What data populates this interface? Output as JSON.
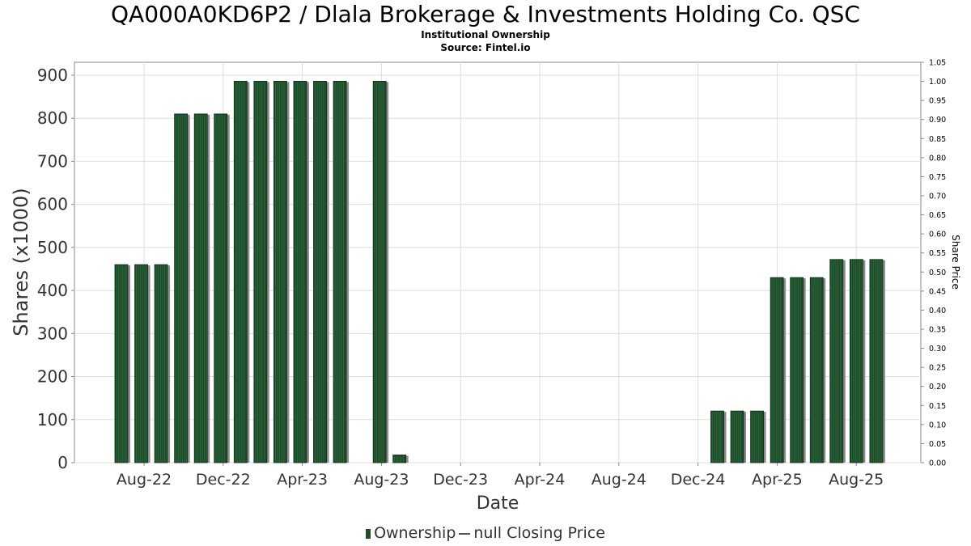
{
  "header": {
    "title": "QA000A0KD6P2 / Dlala Brokerage & Investments Holding Co. QSC",
    "subtitle1": "Institutional Ownership",
    "subtitle2": "Source: Fintel.io"
  },
  "legend": {
    "ownership": "Ownership",
    "price": "null Closing Price"
  },
  "colors": {
    "bar": "#1e4d2b",
    "bar_shadow": "#8c8c8c",
    "grid": "#dddddd"
  },
  "chart_data": {
    "type": "bar",
    "xlabel": "Date",
    "ylabel": "Shares (x1000)",
    "y2label": "Share Price",
    "ylim": [
      0,
      930
    ],
    "y2lim": [
      0,
      1.05
    ],
    "yticks": [
      0,
      100,
      200,
      300,
      400,
      500,
      600,
      700,
      800,
      900
    ],
    "y2ticks": [
      "0.00",
      "0.05",
      "0.10",
      "0.15",
      "0.20",
      "0.25",
      "0.30",
      "0.35",
      "0.40",
      "0.45",
      "0.50",
      "0.55",
      "0.60",
      "0.65",
      "0.70",
      "0.75",
      "0.80",
      "0.85",
      "0.90",
      "0.95",
      "1.00",
      "1.05"
    ],
    "xticks": [
      "Aug-22",
      "Dec-22",
      "Apr-23",
      "Aug-23",
      "Dec-23",
      "Apr-24",
      "Aug-24",
      "Dec-24",
      "Apr-25",
      "Aug-25"
    ],
    "grid": true,
    "bars": [
      {
        "slot": 0,
        "value": 460
      },
      {
        "slot": 1,
        "value": 460
      },
      {
        "slot": 2,
        "value": 460
      },
      {
        "slot": 3,
        "value": 810
      },
      {
        "slot": 4,
        "value": 810
      },
      {
        "slot": 5,
        "value": 810
      },
      {
        "slot": 6,
        "value": 886
      },
      {
        "slot": 7,
        "value": 886
      },
      {
        "slot": 8,
        "value": 886
      },
      {
        "slot": 9,
        "value": 886
      },
      {
        "slot": 10,
        "value": 886
      },
      {
        "slot": 11,
        "value": 886
      },
      {
        "slot": 13,
        "value": 886
      },
      {
        "slot": 14,
        "value": 18
      },
      {
        "slot": 30,
        "value": 120
      },
      {
        "slot": 31,
        "value": 120
      },
      {
        "slot": 32,
        "value": 120
      },
      {
        "slot": 33,
        "value": 430
      },
      {
        "slot": 34,
        "value": 430
      },
      {
        "slot": 35,
        "value": 430
      },
      {
        "slot": 36,
        "value": 472
      },
      {
        "slot": 37,
        "value": 472
      },
      {
        "slot": 38,
        "value": 472
      }
    ]
  }
}
